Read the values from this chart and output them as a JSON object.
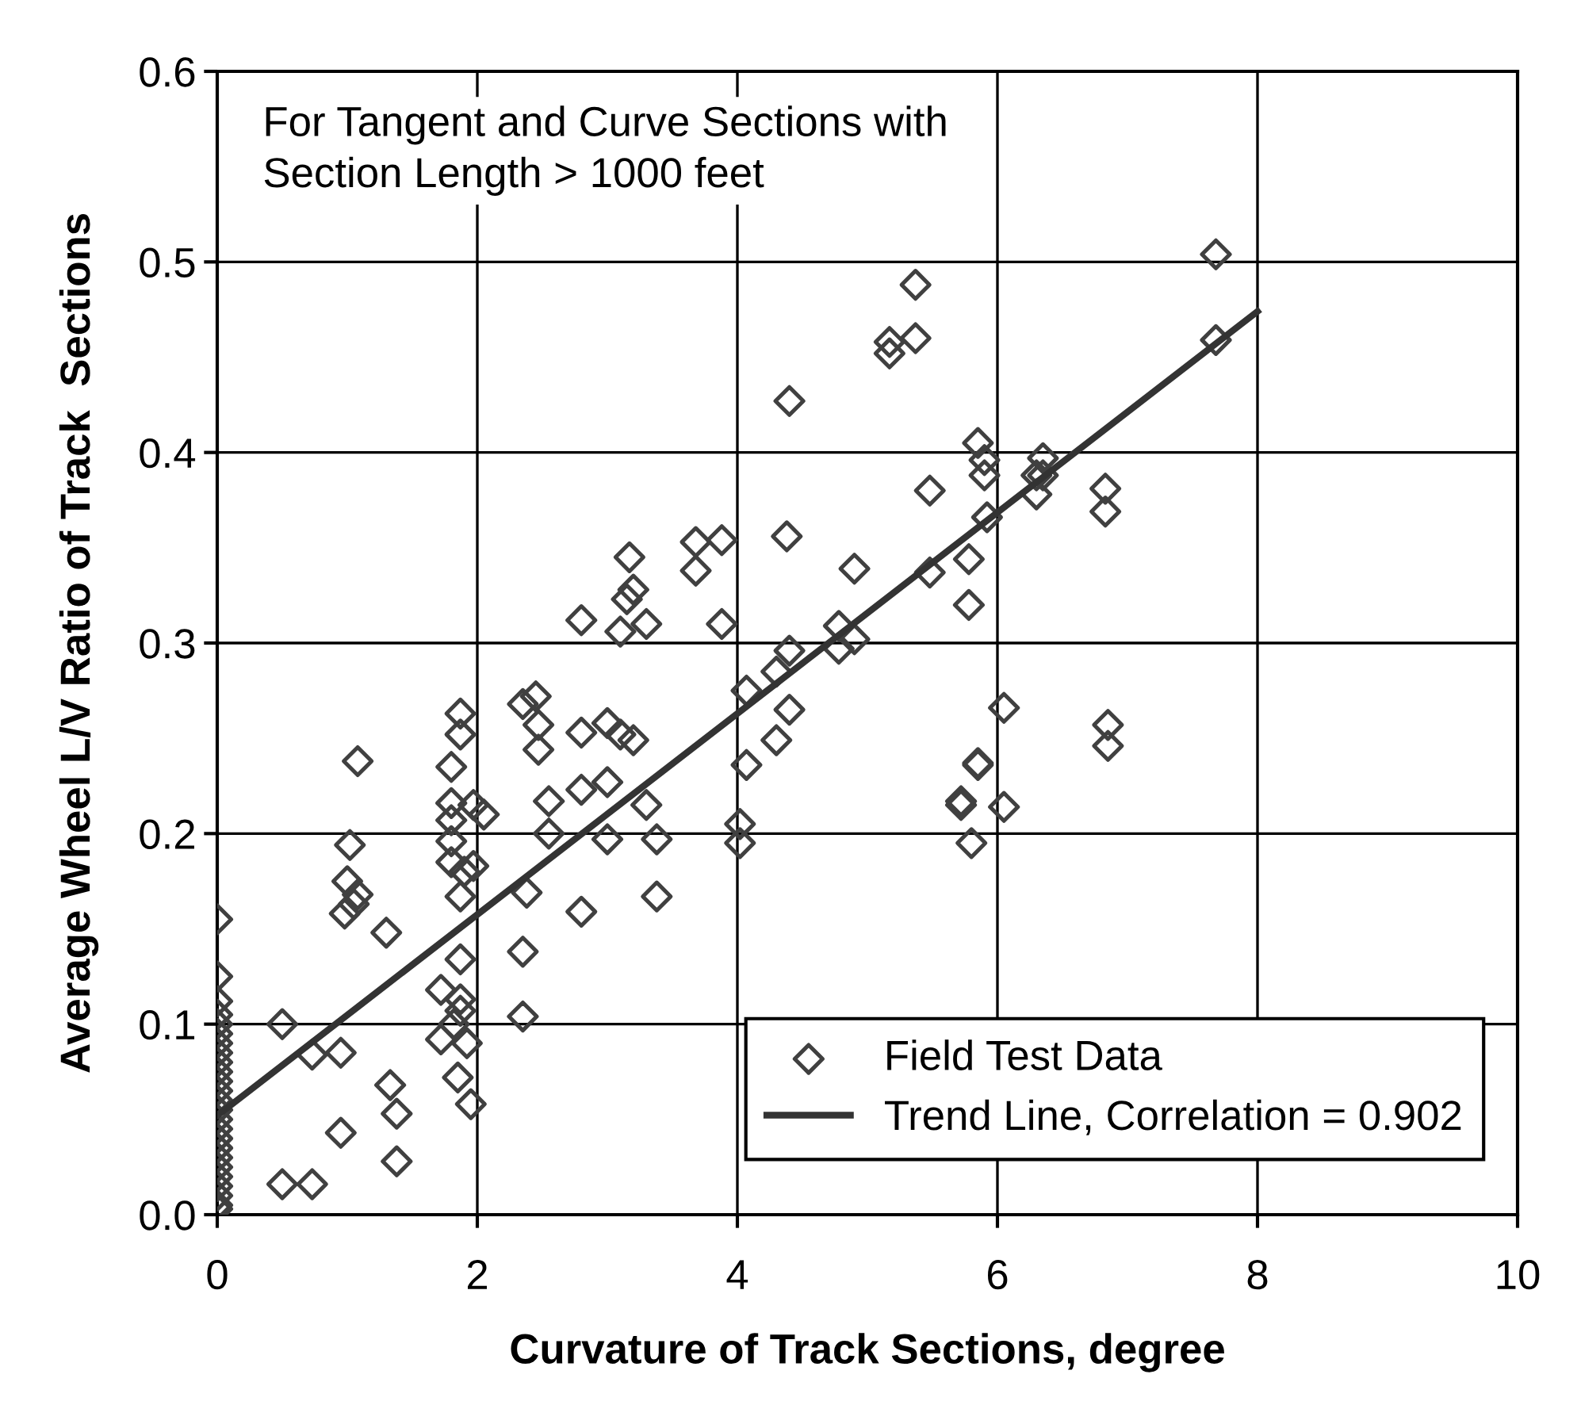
{
  "chart_data": {
    "type": "scatter",
    "xlabel": "Curvature of Track Sections, degree",
    "ylabel": "Average Wheel L/V Ratio of Track  Sections",
    "annotations": [
      "For Tangent and Curve Sections with\nSection Length > 1000 feet"
    ],
    "xlim": [
      0,
      10
    ],
    "xticks": [
      0,
      2,
      4,
      6,
      8,
      10
    ],
    "ylim": [
      0,
      0.6
    ],
    "yticks": [
      {
        "value": 0,
        "label": "0.0"
      },
      {
        "value": 0.1,
        "label": "0.1"
      },
      {
        "value": 0.2,
        "label": "0.2"
      },
      {
        "value": 0.3,
        "label": "0.3"
      },
      {
        "value": 0.4,
        "label": "0.4"
      },
      {
        "value": 0.5,
        "label": "0.5"
      },
      {
        "value": 0.6,
        "label": "0.6"
      }
    ],
    "grid": true,
    "legend": "bottom right",
    "series": [
      {
        "name": "Field Test Data",
        "marker": "diamond",
        "color": "#404040",
        "x": [
          0,
          0,
          0,
          0,
          0,
          0,
          0,
          0,
          0,
          0,
          0,
          0,
          0,
          0,
          0,
          0,
          0,
          0,
          0,
          0,
          0,
          0,
          0,
          0,
          0,
          0.5,
          0.5,
          0.73,
          0.73,
          0.95,
          0.95,
          0.98,
          1.0,
          1.02,
          1.05,
          1.08,
          1.08,
          1.3,
          1.33,
          1.38,
          1.38,
          1.72,
          1.72,
          1.8,
          1.8,
          1.8,
          1.8,
          1.8,
          1.82,
          1.85,
          1.87,
          1.87,
          1.87,
          1.87,
          1.87,
          1.87,
          1.9,
          1.92,
          1.95,
          1.97,
          1.97,
          2.05,
          2.35,
          2.35,
          2.35,
          2.38,
          2.45,
          2.47,
          2.47,
          2.55,
          2.55,
          2.8,
          2.8,
          2.8,
          2.8,
          3.0,
          3.0,
          3.0,
          3.1,
          3.1,
          3.15,
          3.17,
          3.2,
          3.2,
          3.3,
          3.3,
          3.38,
          3.38,
          3.68,
          3.68,
          3.88,
          3.88,
          4.02,
          4.02,
          4.07,
          4.07,
          4.3,
          4.3,
          4.38,
          4.4,
          4.4,
          4.4,
          4.78,
          4.78,
          4.9,
          4.9,
          5.17,
          5.17,
          5.37,
          5.37,
          5.48,
          5.48,
          5.72,
          5.72,
          5.78,
          5.78,
          5.8,
          5.85,
          5.85,
          5.85,
          5.9,
          5.9,
          5.92,
          6.05,
          6.05,
          6.3,
          6.3,
          6.35,
          6.35,
          6.83,
          6.83,
          6.85,
          6.85,
          7.68,
          7.68
        ],
        "values": [
          0.155,
          0.125,
          0.112,
          0.105,
          0.1,
          0.095,
          0.09,
          0.085,
          0.08,
          0.075,
          0.07,
          0.065,
          0.06,
          0.055,
          0.05,
          0.045,
          0.04,
          0.035,
          0.03,
          0.025,
          0.02,
          0.015,
          0.01,
          0.005,
          0.003,
          0.1,
          0.016,
          0.084,
          0.016,
          0.085,
          0.043,
          0.158,
          0.175,
          0.194,
          0.163,
          0.168,
          0.238,
          0.148,
          0.068,
          0.053,
          0.028,
          0.118,
          0.092,
          0.235,
          0.216,
          0.207,
          0.196,
          0.185,
          0.1,
          0.072,
          0.263,
          0.252,
          0.167,
          0.134,
          0.113,
          0.107,
          0.18,
          0.09,
          0.058,
          0.183,
          0.215,
          0.21,
          0.268,
          0.138,
          0.104,
          0.169,
          0.272,
          0.257,
          0.244,
          0.217,
          0.2,
          0.312,
          0.253,
          0.223,
          0.159,
          0.258,
          0.227,
          0.197,
          0.306,
          0.252,
          0.323,
          0.345,
          0.328,
          0.249,
          0.31,
          0.215,
          0.197,
          0.167,
          0.353,
          0.338,
          0.354,
          0.31,
          0.205,
          0.195,
          0.275,
          0.236,
          0.285,
          0.249,
          0.356,
          0.427,
          0.296,
          0.265,
          0.309,
          0.297,
          0.339,
          0.302,
          0.458,
          0.452,
          0.488,
          0.46,
          0.38,
          0.337,
          0.217,
          0.215,
          0.344,
          0.32,
          0.195,
          0.405,
          0.237,
          0.236,
          0.396,
          0.388,
          0.366,
          0.266,
          0.214,
          0.388,
          0.378,
          0.397,
          0.388,
          0.381,
          0.369,
          0.257,
          0.246,
          0.504,
          0.459
        ]
      },
      {
        "name": "Trend Line, Correlation = 0.902",
        "type": "line",
        "line_style": "solid",
        "color": "#333333",
        "x": [
          0,
          8
        ],
        "values": [
          0.052,
          0.474
        ]
      }
    ]
  }
}
